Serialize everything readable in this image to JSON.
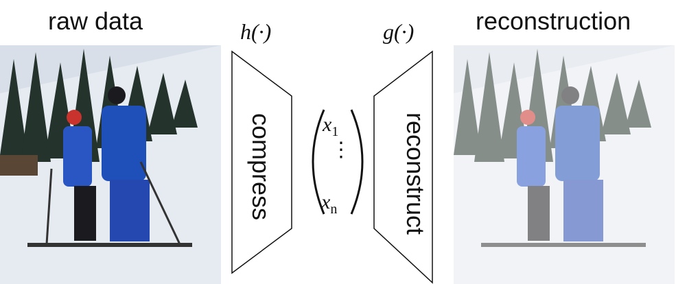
{
  "titles": {
    "raw": "raw data",
    "reconstruction": "reconstruction"
  },
  "functions": {
    "encoder": "h(·)",
    "decoder": "g(·)"
  },
  "stages": {
    "encoder": "compress",
    "decoder": "reconstruct"
  },
  "latent": {
    "first": "x",
    "first_sub": "1",
    "dots": "⋮",
    "last": "x",
    "last_sub": "n"
  },
  "colors": {
    "jacket": "#1f4fb8",
    "snow": "#e9edf3",
    "trees": "#24332c",
    "sky": "#dfe6ef"
  }
}
